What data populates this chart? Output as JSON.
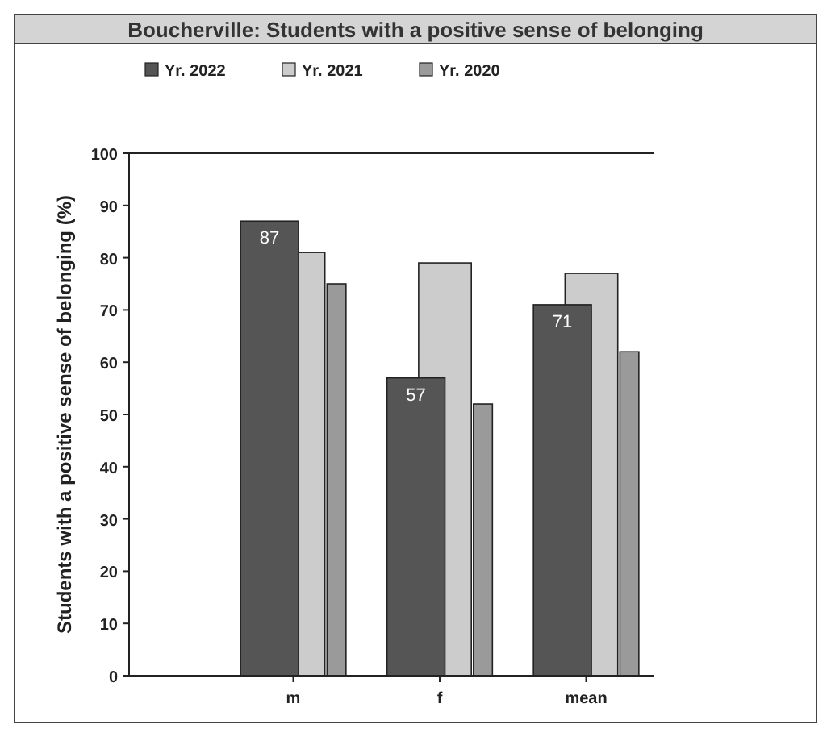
{
  "chart_data": {
    "type": "bar",
    "title": "Boucherville: Students with a positive sense of belonging",
    "ylabel": "Students with a positive sense of belonging (%)",
    "categories": [
      "m",
      "f",
      "mean"
    ],
    "series": [
      {
        "name": "Yr. 2022",
        "color": "#555555",
        "values": [
          87,
          57,
          71
        ],
        "value_labels": [
          "87",
          "57",
          "71"
        ]
      },
      {
        "name": "Yr. 2021",
        "color": "#cccccc",
        "values": [
          81,
          79,
          77
        ]
      },
      {
        "name": "Yr. 2020",
        "color": "#9a9a9a",
        "values": [
          75,
          52,
          62
        ]
      }
    ],
    "ylim": [
      0,
      100
    ],
    "yticks": [
      0,
      10,
      20,
      30,
      40,
      50,
      60,
      70,
      80,
      90,
      100
    ],
    "legend": "top",
    "grid": false
  }
}
